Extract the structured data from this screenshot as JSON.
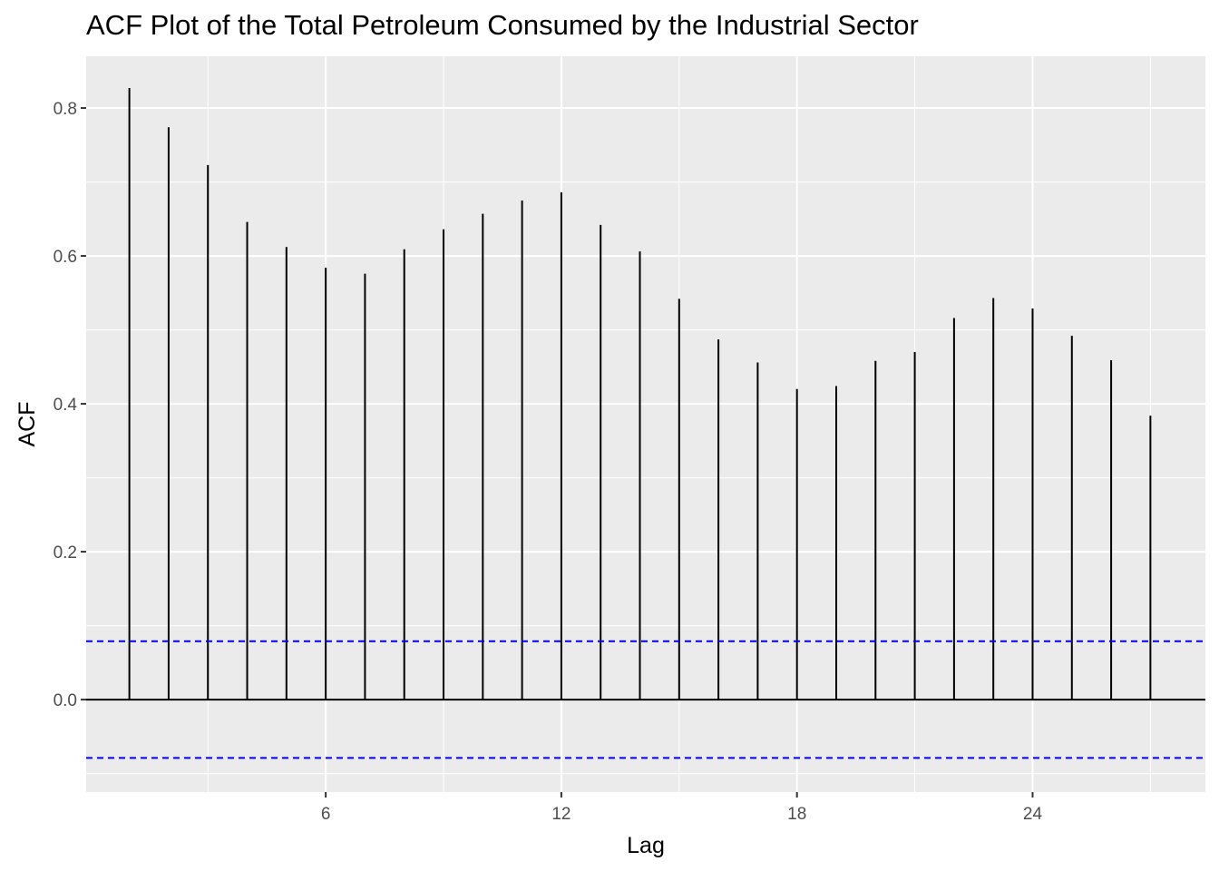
{
  "chart_data": {
    "type": "bar",
    "title": "ACF Plot of the Total Petroleum Consumed by the Industrial Sector",
    "xlabel": "Lag",
    "ylabel": "ACF",
    "x": [
      1,
      2,
      3,
      4,
      5,
      6,
      7,
      8,
      9,
      10,
      11,
      12,
      13,
      14,
      15,
      16,
      17,
      18,
      19,
      20,
      21,
      22,
      23,
      24,
      25,
      26,
      27
    ],
    "values": [
      0.827,
      0.774,
      0.723,
      0.646,
      0.612,
      0.584,
      0.576,
      0.609,
      0.636,
      0.657,
      0.675,
      0.686,
      0.642,
      0.606,
      0.542,
      0.487,
      0.456,
      0.42,
      0.424,
      0.458,
      0.47,
      0.516,
      0.543,
      0.529,
      0.492,
      0.459,
      0.384
    ],
    "confidence_bounds": [
      0.0789,
      -0.0789
    ],
    "xlim": [
      -0.1,
      28.4
    ],
    "ylim": [
      -0.125,
      0.87
    ],
    "x_ticks": [
      6,
      12,
      18,
      24
    ],
    "x_tick_labels": [
      "6",
      "12",
      "18",
      "24"
    ],
    "y_ticks": [
      0.0,
      0.2,
      0.4,
      0.6,
      0.8
    ],
    "y_tick_labels": [
      "0.0",
      "0.2",
      "0.4",
      "0.6",
      "0.8"
    ],
    "grid": true,
    "colors": {
      "panel": "#ebebeb",
      "grid": "#ffffff",
      "bars": "#000000",
      "bounds": "#0000ff",
      "tick_text": "#4d4d4d"
    }
  }
}
